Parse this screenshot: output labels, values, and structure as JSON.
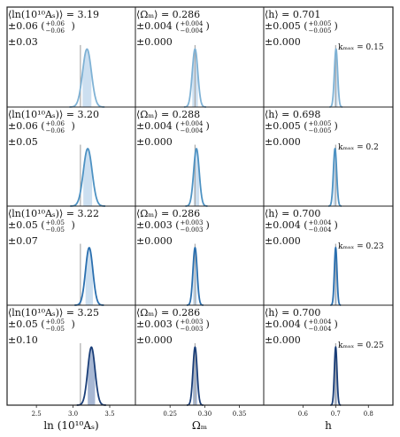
{
  "colors": {
    "row_colors": [
      "#7fb2d5",
      "#4d92c3",
      "#2a6faf",
      "#1a3e78"
    ],
    "shade_light": "#c6dcee",
    "shade_dark": "#9fb0cf",
    "truth_line": "#aaaaaa",
    "frame": "#222222"
  },
  "columns": [
    {
      "xlabel": "ln (10¹⁰Aₛ)",
      "ticks": [
        2.5,
        3.0,
        3.5
      ],
      "tick_labels": [
        "2.5",
        "3.0",
        "3.5"
      ],
      "xlim": [
        2.1,
        3.85
      ],
      "truth": 3.1
    },
    {
      "xlabel": "Ωₘ",
      "ticks": [
        0.25,
        0.3,
        0.35
      ],
      "tick_labels": [
        "0.25",
        "0.30",
        "0.35"
      ],
      "xlim": [
        0.2,
        0.385
      ],
      "truth": 0.286
    },
    {
      "xlabel": "h",
      "ticks": [
        0.6,
        0.7,
        0.8
      ],
      "tick_labels": [
        "0.6",
        "0.7",
        "0.8"
      ],
      "xlim": [
        0.48,
        0.875
      ],
      "truth": 0.7
    }
  ],
  "rows": [
    {
      "kmax_label": "kₘₐₓ = 0.15",
      "kmax": 0.15
    },
    {
      "kmax_label": "kₘₐₓ = 0.2",
      "kmax": 0.2
    },
    {
      "kmax_label": "kₘₐₓ = 0.23",
      "kmax": 0.23
    },
    {
      "kmax_label": "kₘₐₓ = 0.25",
      "kmax": 0.25
    }
  ],
  "chart_data": {
    "type": "line",
    "panels": [
      {
        "row": 0,
        "col": 0,
        "line1": "⟨ln(10¹⁰Aₛ)⟩ = 3.19",
        "line2_main": "±0.06 (",
        "up": "+0.06",
        "down": "−0.06",
        "line3": "±0.03",
        "mean": 3.19,
        "sigma": 0.06
      },
      {
        "row": 0,
        "col": 1,
        "line1": "⟨Ωₘ⟩ = 0.286",
        "line2_main": "±0.004 (",
        "up": "+0.004",
        "down": "−0.004",
        "line3": "±0.000",
        "mean": 0.286,
        "sigma": 0.004
      },
      {
        "row": 0,
        "col": 2,
        "line1": "⟨h⟩ = 0.701",
        "line2_main": "±0.005 (",
        "up": "+0.005",
        "down": "−0.005",
        "line3": "±0.000",
        "mean": 0.701,
        "sigma": 0.005
      },
      {
        "row": 1,
        "col": 0,
        "line1": "⟨ln(10¹⁰Aₛ)⟩ = 3.20",
        "line2_main": "±0.06 (",
        "up": "+0.06",
        "down": "−0.06",
        "line3": "±0.05",
        "mean": 3.2,
        "sigma": 0.06
      },
      {
        "row": 1,
        "col": 1,
        "line1": "⟨Ωₘ⟩ = 0.288",
        "line2_main": "±0.004 (",
        "up": "+0.004",
        "down": "−0.004",
        "line3": "±0.000",
        "mean": 0.288,
        "sigma": 0.004
      },
      {
        "row": 1,
        "col": 2,
        "line1": "⟨h⟩ = 0.698",
        "line2_main": "±0.005 (",
        "up": "+0.005",
        "down": "−0.005",
        "line3": "±0.000",
        "mean": 0.698,
        "sigma": 0.005
      },
      {
        "row": 2,
        "col": 0,
        "line1": "⟨ln(10¹⁰Aₛ)⟩ = 3.22",
        "line2_main": "±0.05 (",
        "up": "+0.05",
        "down": "−0.05",
        "line3": "±0.07",
        "mean": 3.22,
        "sigma": 0.05
      },
      {
        "row": 2,
        "col": 1,
        "line1": "⟨Ωₘ⟩ = 0.286",
        "line2_main": "±0.003 (",
        "up": "+0.003",
        "down": "−0.003",
        "line3": "±0.000",
        "mean": 0.286,
        "sigma": 0.003
      },
      {
        "row": 2,
        "col": 2,
        "line1": "⟨h⟩ = 0.700",
        "line2_main": "±0.004 (",
        "up": "+0.004",
        "down": "−0.004",
        "line3": "±0.000",
        "mean": 0.7,
        "sigma": 0.004
      },
      {
        "row": 3,
        "col": 0,
        "line1": "⟨ln(10¹⁰Aₛ)⟩ = 3.25",
        "line2_main": "±0.05 (",
        "up": "+0.05",
        "down": "−0.05",
        "line3": "±0.10",
        "mean": 3.25,
        "sigma": 0.05
      },
      {
        "row": 3,
        "col": 1,
        "line1": "⟨Ωₘ⟩ = 0.286",
        "line2_main": "±0.003 (",
        "up": "+0.003",
        "down": "−0.003",
        "line3": "±0.000",
        "mean": 0.286,
        "sigma": 0.003
      },
      {
        "row": 3,
        "col": 2,
        "line1": "⟨h⟩ = 0.700",
        "line2_main": "±0.004 (",
        "up": "+0.004",
        "down": "−0.004",
        "line3": "±0.000",
        "mean": 0.7,
        "sigma": 0.004
      }
    ]
  }
}
